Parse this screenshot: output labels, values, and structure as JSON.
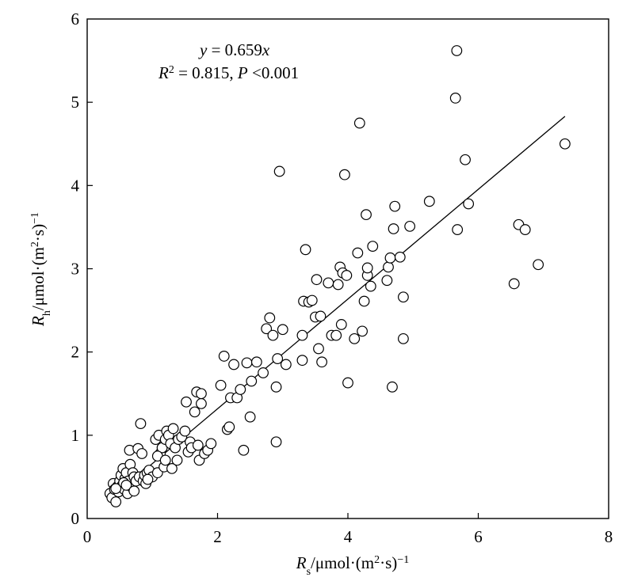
{
  "chart_data": {
    "type": "scatter",
    "title": "",
    "xlabel": {
      "base": "R",
      "sub": "s",
      "unit": "/μmol·(m",
      "sup2": "2",
      "unit_end": "·s)",
      "exp": "−1"
    },
    "ylabel": {
      "base": "R",
      "sub": "h",
      "unit": "/μmol·(m",
      "sup2": "2",
      "unit_end": "·s)",
      "exp": "−1"
    },
    "xlim": [
      0,
      8
    ],
    "ylim": [
      0,
      6
    ],
    "xticks": [
      "0",
      "2",
      "4",
      "6",
      "8"
    ],
    "yticks": [
      "0",
      "1",
      "2",
      "3",
      "4",
      "5",
      "6"
    ],
    "grid": false,
    "legend": "none",
    "annotations": {
      "equation": {
        "y": "y",
        "eq": " = 0.659",
        "x": "x"
      },
      "stats": {
        "R": "R",
        "sup": "2",
        "val": " = 0.815,  ",
        "P": "P",
        "pval": " <0.001"
      }
    },
    "fit_line": {
      "slope": 0.659,
      "x_start": 0.4,
      "x_end": 7.33
    },
    "points": [
      [
        0.35,
        0.3
      ],
      [
        0.38,
        0.25
      ],
      [
        0.4,
        0.42
      ],
      [
        0.42,
        0.35
      ],
      [
        0.44,
        0.2
      ],
      [
        0.46,
        0.38
      ],
      [
        0.48,
        0.32
      ],
      [
        0.5,
        0.45
      ],
      [
        0.52,
        0.52
      ],
      [
        0.54,
        0.4
      ],
      [
        0.55,
        0.6
      ],
      [
        0.57,
        0.35
      ],
      [
        0.58,
        0.48
      ],
      [
        0.6,
        0.55
      ],
      [
        0.62,
        0.3
      ],
      [
        0.63,
        0.45
      ],
      [
        0.65,
        0.82
      ],
      [
        0.66,
        0.65
      ],
      [
        0.68,
        0.38
      ],
      [
        0.7,
        0.55
      ],
      [
        0.72,
        0.5
      ],
      [
        0.75,
        0.45
      ],
      [
        0.78,
        0.84
      ],
      [
        0.8,
        0.5
      ],
      [
        0.82,
        1.14
      ],
      [
        0.84,
        0.78
      ],
      [
        0.86,
        0.45
      ],
      [
        0.88,
        0.52
      ],
      [
        0.9,
        0.42
      ],
      [
        0.92,
        0.55
      ],
      [
        0.95,
        0.58
      ],
      [
        1.0,
        0.5
      ],
      [
        1.05,
        0.95
      ],
      [
        1.08,
        0.55
      ],
      [
        1.1,
        1.0
      ],
      [
        1.12,
        0.78
      ],
      [
        1.15,
        0.85
      ],
      [
        1.18,
        0.62
      ],
      [
        1.2,
        0.95
      ],
      [
        1.22,
        1.05
      ],
      [
        1.25,
        1.0
      ],
      [
        1.28,
        0.9
      ],
      [
        1.3,
        0.6
      ],
      [
        1.32,
        1.08
      ],
      [
        1.35,
        0.85
      ],
      [
        1.4,
        0.95
      ],
      [
        1.45,
        0.98
      ],
      [
        1.5,
        1.05
      ],
      [
        1.52,
        1.4
      ],
      [
        1.55,
        0.8
      ],
      [
        1.58,
        0.92
      ],
      [
        1.6,
        0.85
      ],
      [
        1.65,
        1.28
      ],
      [
        1.68,
        1.52
      ],
      [
        1.7,
        0.88
      ],
      [
        1.72,
        0.7
      ],
      [
        1.75,
        1.38
      ],
      [
        1.75,
        1.5
      ],
      [
        1.8,
        0.78
      ],
      [
        1.85,
        0.82
      ],
      [
        1.9,
        0.9
      ],
      [
        2.05,
        1.6
      ],
      [
        2.1,
        1.95
      ],
      [
        2.15,
        1.07
      ],
      [
        2.18,
        1.1
      ],
      [
        2.2,
        1.45
      ],
      [
        2.25,
        1.85
      ],
      [
        2.3,
        1.45
      ],
      [
        2.35,
        1.55
      ],
      [
        2.4,
        0.82
      ],
      [
        2.45,
        1.87
      ],
      [
        2.5,
        1.22
      ],
      [
        2.52,
        1.65
      ],
      [
        2.6,
        1.88
      ],
      [
        2.7,
        1.75
      ],
      [
        2.75,
        2.28
      ],
      [
        2.8,
        2.41
      ],
      [
        2.85,
        2.2
      ],
      [
        2.9,
        0.92
      ],
      [
        2.9,
        1.58
      ],
      [
        2.92,
        1.92
      ],
      [
        2.95,
        4.17
      ],
      [
        3.0,
        2.27
      ],
      [
        3.05,
        1.85
      ],
      [
        3.3,
        2.2
      ],
      [
        3.3,
        1.9
      ],
      [
        3.32,
        2.61
      ],
      [
        3.35,
        3.23
      ],
      [
        3.4,
        2.6
      ],
      [
        3.45,
        2.62
      ],
      [
        3.5,
        2.42
      ],
      [
        3.52,
        2.87
      ],
      [
        3.55,
        2.04
      ],
      [
        3.58,
        2.43
      ],
      [
        3.6,
        1.88
      ],
      [
        3.7,
        2.83
      ],
      [
        3.75,
        2.2
      ],
      [
        3.82,
        2.2
      ],
      [
        3.85,
        2.81
      ],
      [
        3.88,
        3.02
      ],
      [
        3.9,
        2.33
      ],
      [
        3.92,
        2.95
      ],
      [
        3.95,
        4.13
      ],
      [
        3.98,
        2.92
      ],
      [
        4.0,
        1.63
      ],
      [
        4.1,
        2.16
      ],
      [
        4.15,
        3.19
      ],
      [
        4.18,
        4.75
      ],
      [
        4.22,
        2.25
      ],
      [
        4.25,
        2.61
      ],
      [
        4.28,
        3.65
      ],
      [
        4.3,
        2.92
      ],
      [
        4.3,
        3.01
      ],
      [
        4.35,
        2.79
      ],
      [
        4.38,
        3.27
      ],
      [
        4.6,
        2.86
      ],
      [
        4.62,
        3.02
      ],
      [
        4.65,
        3.13
      ],
      [
        4.68,
        1.58
      ],
      [
        4.7,
        3.48
      ],
      [
        4.72,
        3.75
      ],
      [
        4.8,
        3.14
      ],
      [
        4.85,
        2.16
      ],
      [
        4.85,
        2.66
      ],
      [
        4.95,
        3.51
      ],
      [
        5.25,
        3.81
      ],
      [
        5.65,
        5.05
      ],
      [
        5.67,
        5.62
      ],
      [
        5.68,
        3.47
      ],
      [
        5.8,
        4.31
      ],
      [
        5.85,
        3.78
      ],
      [
        6.55,
        2.82
      ],
      [
        6.62,
        3.53
      ],
      [
        6.72,
        3.47
      ],
      [
        6.92,
        3.05
      ],
      [
        7.33,
        4.5
      ],
      [
        0.44,
        0.36
      ],
      [
        0.56,
        0.43
      ],
      [
        0.6,
        0.4
      ],
      [
        0.72,
        0.33
      ],
      [
        0.93,
        0.47
      ],
      [
        1.08,
        0.75
      ],
      [
        1.2,
        0.7
      ],
      [
        1.38,
        0.7
      ]
    ]
  }
}
